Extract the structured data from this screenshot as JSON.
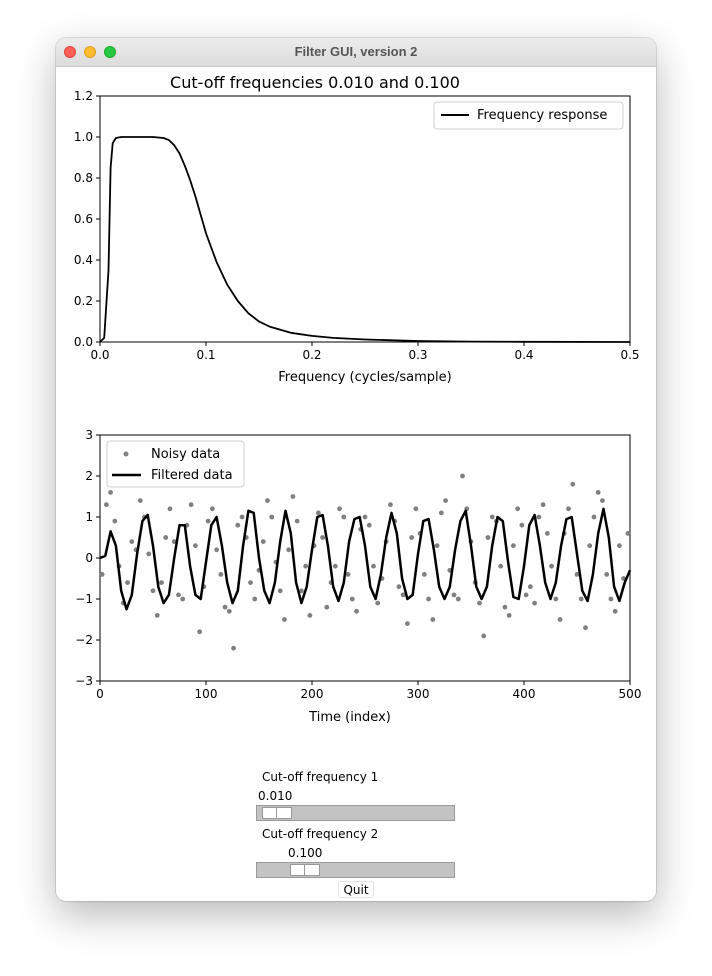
{
  "window": {
    "title": "Filter GUI, version 2"
  },
  "controls": {
    "slider1": {
      "label": "Cut-off frequency 1",
      "value_text": "0.010",
      "value": 0.01,
      "fraction": 0.1
    },
    "slider2": {
      "label": "Cut-off frequency 2",
      "value_text": "0.100",
      "value": 0.1,
      "fraction": 0.25
    },
    "quit_label": "Quit"
  },
  "colors": {
    "line": "#000000",
    "noisy_points": "#808080",
    "slider_trough": "#c3c3c3"
  },
  "chart_data": [
    {
      "type": "line",
      "title": "Cut-off frequencies 0.010 and 0.100",
      "xlabel": "Frequency (cycles/sample)",
      "ylabel": "",
      "xlim": [
        0,
        0.5
      ],
      "ylim": [
        0,
        1.2
      ],
      "xticks": [
        "0.0",
        "0.1",
        "0.2",
        "0.3",
        "0.4",
        "0.5"
      ],
      "yticks": [
        "0.0",
        "0.2",
        "0.4",
        "0.6",
        "0.8",
        "1.0",
        "1.2"
      ],
      "legend": "top-right",
      "grid": false,
      "series": [
        {
          "name": "Frequency response",
          "x": [
            0,
            0.004,
            0.008,
            0.01,
            0.012,
            0.015,
            0.02,
            0.03,
            0.04,
            0.05,
            0.06,
            0.065,
            0.07,
            0.075,
            0.08,
            0.085,
            0.09,
            0.095,
            0.1,
            0.11,
            0.12,
            0.13,
            0.14,
            0.15,
            0.16,
            0.18,
            0.2,
            0.22,
            0.25,
            0.3,
            0.35,
            0.4,
            0.5
          ],
          "y": [
            0,
            0.02,
            0.35,
            0.85,
            0.97,
            0.995,
            1.0,
            1.0,
            1.0,
            1.0,
            0.995,
            0.985,
            0.96,
            0.92,
            0.86,
            0.79,
            0.71,
            0.62,
            0.53,
            0.39,
            0.28,
            0.2,
            0.14,
            0.1,
            0.075,
            0.045,
            0.03,
            0.02,
            0.012,
            0.005,
            0.002,
            0.001,
            0.0
          ]
        }
      ]
    },
    {
      "type": "line",
      "title": "",
      "xlabel": "Time (index)",
      "ylabel": "",
      "xlim": [
        0,
        500
      ],
      "ylim": [
        -3,
        3
      ],
      "xticks": [
        "0",
        "100",
        "200",
        "300",
        "400",
        "500"
      ],
      "yticks": [
        "−3",
        "−2",
        "−1",
        "0",
        "1",
        "2",
        "3"
      ],
      "legend": "top-left",
      "grid": false,
      "series": [
        {
          "name": "Noisy data",
          "style": "scatter",
          "x": [
            2,
            6,
            10,
            14,
            18,
            22,
            26,
            30,
            34,
            38,
            42,
            46,
            50,
            54,
            58,
            62,
            66,
            70,
            74,
            78,
            82,
            86,
            90,
            94,
            98,
            102,
            106,
            110,
            114,
            118,
            122,
            126,
            130,
            134,
            138,
            142,
            146,
            150,
            154,
            158,
            162,
            166,
            170,
            174,
            178,
            182,
            186,
            190,
            194,
            198,
            202,
            206,
            210,
            214,
            218,
            222,
            226,
            230,
            234,
            238,
            242,
            246,
            250,
            254,
            258,
            262,
            266,
            270,
            274,
            278,
            282,
            286,
            290,
            294,
            298,
            302,
            306,
            310,
            314,
            318,
            322,
            326,
            330,
            334,
            338,
            342,
            346,
            350,
            354,
            358,
            362,
            366,
            370,
            374,
            378,
            382,
            386,
            390,
            394,
            398,
            402,
            406,
            410,
            414,
            418,
            422,
            426,
            430,
            434,
            438,
            442,
            446,
            450,
            454,
            458,
            462,
            466,
            470,
            474,
            478,
            482,
            486,
            490,
            494,
            498
          ],
          "y": [
            -0.4,
            1.3,
            1.6,
            0.9,
            -0.2,
            -1.1,
            -0.6,
            0.4,
            0.2,
            1.4,
            1.0,
            0.1,
            -0.8,
            -1.4,
            -0.6,
            0.5,
            1.2,
            0.4,
            -0.9,
            -1.0,
            0.8,
            1.3,
            0.3,
            -1.8,
            -0.7,
            0.9,
            1.2,
            0.2,
            -0.4,
            -1.2,
            -1.3,
            -2.2,
            0.8,
            1.0,
            0.5,
            -0.6,
            -1.0,
            -0.3,
            0.4,
            1.4,
            1.0,
            -0.1,
            -0.8,
            -1.5,
            0.2,
            1.5,
            0.9,
            -0.8,
            -0.2,
            -1.4,
            0.3,
            1.1,
            0.5,
            -1.2,
            -0.6,
            -0.2,
            1.2,
            1.0,
            -0.4,
            -1.0,
            -1.3,
            0.7,
            1.0,
            0.8,
            -0.2,
            -1.1,
            -0.5,
            0.4,
            1.3,
            0.9,
            -0.7,
            -0.9,
            -1.6,
            0.5,
            1.2,
            0.6,
            -0.4,
            -1.0,
            -1.5,
            0.3,
            1.1,
            1.4,
            -0.3,
            -0.9,
            -1.0,
            2.0,
            1.2,
            0.4,
            -0.6,
            -1.1,
            -1.9,
            0.5,
            1.0,
            0.9,
            -0.2,
            -1.2,
            -1.4,
            0.3,
            1.2,
            0.8,
            -0.9,
            -0.7,
            -1.1,
            1.0,
            1.3,
            0.6,
            -0.2,
            -1.0,
            -1.5,
            0.6,
            1.2,
            1.8,
            -0.4,
            -1.0,
            -1.7,
            0.3,
            1.0,
            1.6,
            1.4,
            -0.4,
            -1.0,
            -1.3,
            0.3,
            -0.5,
            0.6
          ]
        },
        {
          "name": "Filtered data",
          "style": "line",
          "x": [
            0,
            5,
            10,
            15,
            20,
            25,
            30,
            35,
            40,
            45,
            50,
            55,
            60,
            65,
            70,
            75,
            80,
            85,
            90,
            95,
            100,
            105,
            110,
            115,
            120,
            125,
            130,
            135,
            140,
            145,
            150,
            155,
            160,
            165,
            170,
            175,
            180,
            185,
            190,
            195,
            200,
            205,
            210,
            215,
            220,
            225,
            230,
            235,
            240,
            245,
            250,
            255,
            260,
            265,
            270,
            275,
            280,
            285,
            290,
            295,
            300,
            305,
            310,
            315,
            320,
            325,
            330,
            335,
            340,
            345,
            350,
            355,
            360,
            365,
            370,
            375,
            380,
            385,
            390,
            395,
            400,
            405,
            410,
            415,
            420,
            425,
            430,
            435,
            440,
            445,
            450,
            455,
            460,
            465,
            470,
            475,
            480,
            485,
            490,
            495,
            500
          ],
          "y": [
            0.0,
            0.05,
            0.65,
            0.3,
            -0.8,
            -1.25,
            -0.9,
            0.1,
            0.9,
            1.05,
            0.3,
            -0.7,
            -1.1,
            -0.9,
            0.0,
            0.8,
            0.8,
            -0.2,
            -0.9,
            -1.0,
            -0.1,
            0.8,
            1.0,
            0.3,
            -0.6,
            -1.1,
            -0.8,
            0.3,
            1.15,
            1.1,
            0.0,
            -0.8,
            -1.1,
            -0.6,
            0.4,
            1.15,
            0.6,
            -0.6,
            -1.1,
            -0.7,
            0.2,
            1.0,
            1.05,
            0.3,
            -0.7,
            -1.05,
            -0.6,
            0.4,
            0.95,
            1.0,
            0.3,
            -0.7,
            -1.0,
            -0.4,
            0.5,
            1.1,
            0.6,
            -0.5,
            -1.0,
            -0.9,
            0.1,
            0.9,
            0.95,
            0.2,
            -0.7,
            -1.0,
            -0.7,
            0.2,
            0.9,
            1.15,
            0.3,
            -0.7,
            -1.0,
            -0.7,
            0.3,
            1.0,
            0.9,
            -0.1,
            -0.95,
            -1.0,
            -0.2,
            0.8,
            1.05,
            0.3,
            -0.6,
            -1.0,
            -0.6,
            0.3,
            0.95,
            1.0,
            0.1,
            -0.8,
            -1.05,
            -0.4,
            0.6,
            1.2,
            0.5,
            -0.7,
            -1.05,
            -0.6,
            -0.3
          ]
        }
      ]
    }
  ]
}
